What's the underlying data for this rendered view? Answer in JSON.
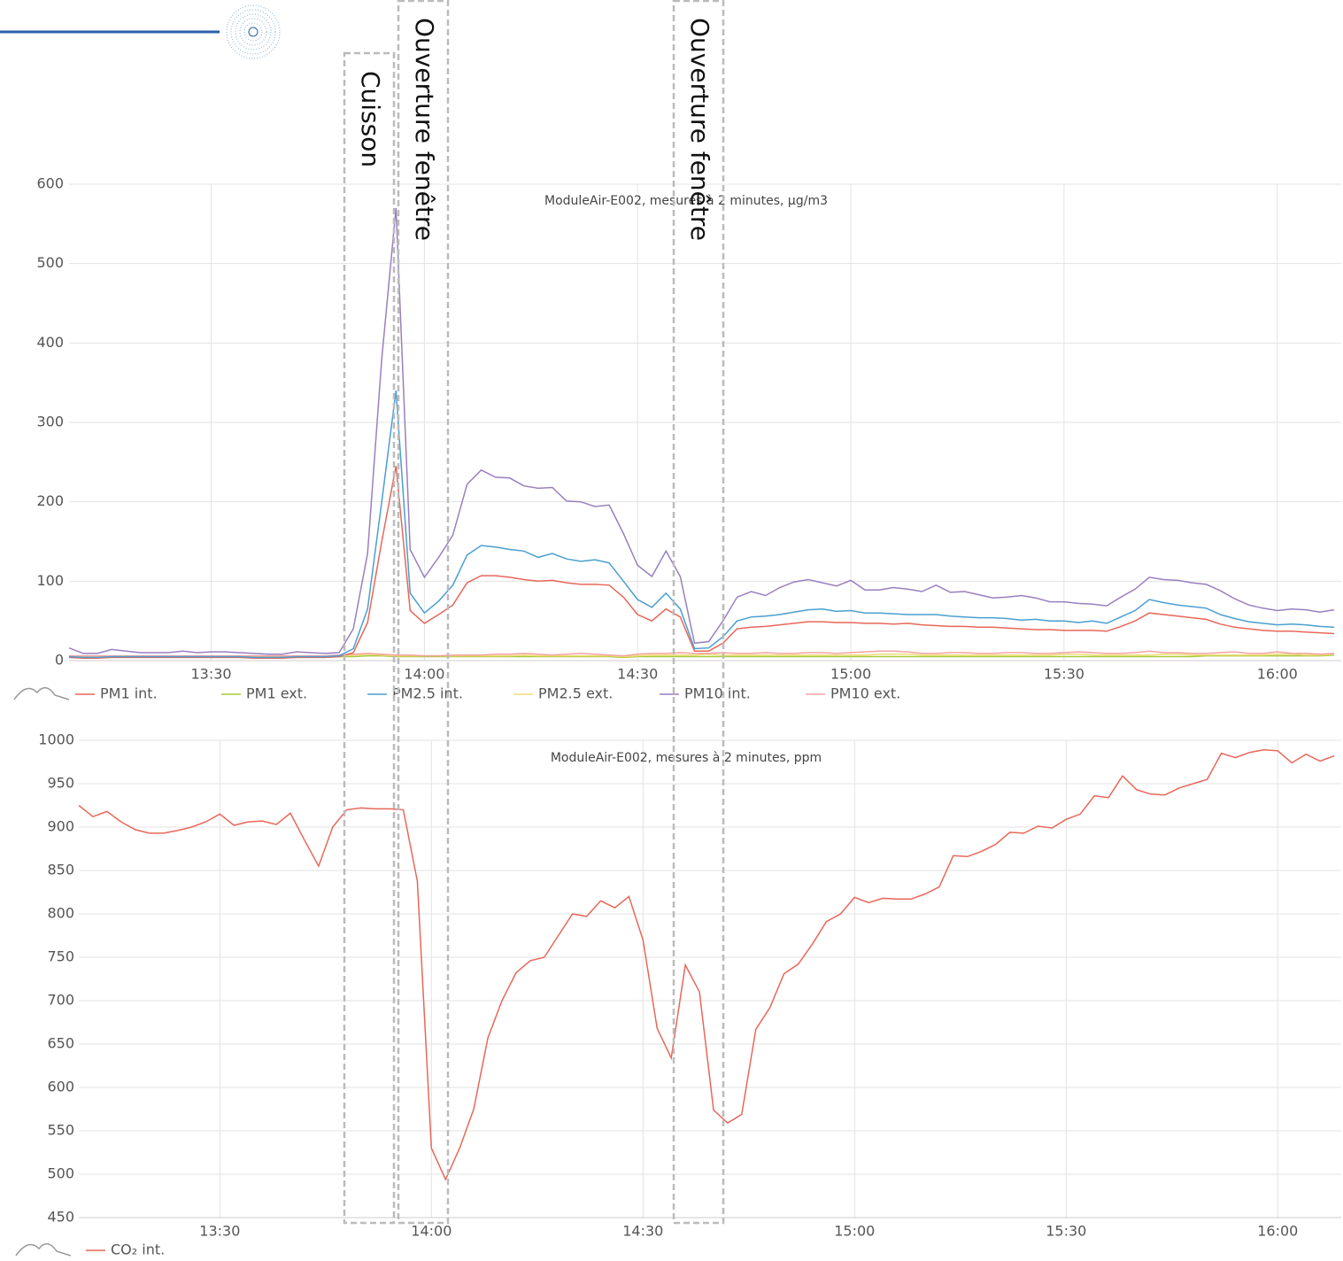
{
  "chart_data": [
    {
      "type": "line",
      "title": "ModuleAir-E002, mesures à 2 minutes, µg/m3",
      "x": [
        "13:10",
        "13:12",
        "13:14",
        "13:16",
        "13:18",
        "13:20",
        "13:22",
        "13:24",
        "13:26",
        "13:28",
        "13:30",
        "13:32",
        "13:34",
        "13:36",
        "13:38",
        "13:40",
        "13:42",
        "13:44",
        "13:46",
        "13:48",
        "13:50",
        "13:52",
        "13:54",
        "13:56",
        "13:58",
        "14:00",
        "14:02",
        "14:04",
        "14:06",
        "14:08",
        "14:10",
        "14:12",
        "14:14",
        "14:16",
        "14:18",
        "14:20",
        "14:22",
        "14:24",
        "14:26",
        "14:28",
        "14:30",
        "14:32",
        "14:34",
        "14:36",
        "14:38",
        "14:40",
        "14:42",
        "14:44",
        "14:46",
        "14:48",
        "14:50",
        "14:52",
        "14:54",
        "14:56",
        "14:58",
        "15:00",
        "15:02",
        "15:04",
        "15:06",
        "15:08",
        "15:10",
        "15:12",
        "15:14",
        "15:16",
        "15:18",
        "15:20",
        "15:22",
        "15:24",
        "15:26",
        "15:28",
        "15:30",
        "15:32",
        "15:34",
        "15:36",
        "15:38",
        "15:40",
        "15:42",
        "15:44",
        "15:46",
        "15:48",
        "15:50",
        "15:52",
        "15:54",
        "15:56",
        "15:58",
        "16:00",
        "16:02",
        "16:04",
        "16:06",
        "16:08"
      ],
      "xlim": [
        "13:10",
        "16:09"
      ],
      "xticks": [
        "13:30",
        "14:00",
        "14:30",
        "15:00",
        "15:30",
        "16:00"
      ],
      "ylim": [
        0,
        600
      ],
      "yticks": [
        0,
        100,
        200,
        300,
        400,
        500,
        600
      ],
      "grid": true,
      "series": [
        {
          "name": "PM1 ext.",
          "color": "#a8c83a",
          "values": [
            4,
            4,
            4,
            4,
            4,
            4,
            4,
            4,
            4,
            4,
            4,
            4,
            4,
            4,
            4,
            4,
            4,
            4,
            4,
            5,
            5,
            6,
            6,
            5,
            5,
            5,
            5,
            5,
            5,
            5,
            5,
            5,
            5,
            5,
            5,
            5,
            5,
            5,
            5,
            4,
            5,
            5,
            5,
            5,
            5,
            5,
            5,
            5,
            5,
            5,
            5,
            5,
            5,
            5,
            5,
            5,
            5,
            5,
            5,
            5,
            5,
            5,
            5,
            5,
            5,
            5,
            5,
            5,
            5,
            5,
            5,
            5,
            5,
            5,
            5,
            5,
            5,
            5,
            5,
            5,
            6,
            6,
            6,
            6,
            6,
            6,
            6,
            6,
            6,
            7
          ]
        },
        {
          "name": "PM2.5 ext.",
          "color": "#f0dc78",
          "values": [
            5,
            5,
            5,
            5,
            5,
            5,
            5,
            5,
            5,
            5,
            5,
            5,
            5,
            5,
            5,
            5,
            5,
            5,
            5,
            6,
            7,
            8,
            7,
            6,
            6,
            6,
            6,
            6,
            6,
            6,
            6,
            6,
            7,
            6,
            6,
            6,
            6,
            6,
            6,
            5,
            6,
            7,
            7,
            7,
            7,
            8,
            7,
            7,
            7,
            7,
            7,
            7,
            7,
            7,
            7,
            7,
            7,
            8,
            8,
            8,
            7,
            7,
            7,
            7,
            7,
            7,
            7,
            7,
            7,
            7,
            8,
            8,
            7,
            7,
            7,
            7,
            7,
            8,
            8,
            7,
            7,
            7,
            7,
            7,
            7,
            8,
            8,
            7,
            7,
            8
          ]
        },
        {
          "name": "PM10 ext.",
          "color": "#f2a3a0",
          "values": [
            6,
            6,
            6,
            6,
            6,
            6,
            6,
            6,
            6,
            6,
            6,
            6,
            6,
            6,
            6,
            6,
            6,
            6,
            6,
            7,
            8,
            9,
            8,
            7,
            7,
            6,
            6,
            7,
            7,
            7,
            8,
            8,
            9,
            8,
            7,
            8,
            9,
            8,
            7,
            6,
            8,
            9,
            9,
            10,
            9,
            9,
            10,
            9,
            9,
            10,
            9,
            9,
            10,
            10,
            9,
            10,
            11,
            12,
            12,
            11,
            9,
            9,
            10,
            10,
            9,
            9,
            10,
            10,
            9,
            9,
            10,
            11,
            10,
            9,
            9,
            10,
            12,
            10,
            10,
            9,
            9,
            10,
            11,
            9,
            9,
            11,
            9,
            9,
            8,
            9
          ]
        },
        {
          "name": "PM1 int.",
          "color": "#e8675a",
          "values": [
            4,
            3,
            3,
            4,
            4,
            4,
            4,
            4,
            4,
            4,
            4,
            4,
            4,
            3,
            3,
            3,
            4,
            4,
            4,
            5,
            10,
            48,
            150,
            245,
            63,
            47,
            58,
            70,
            98,
            107,
            107,
            105,
            102,
            100,
            101,
            98,
            96,
            96,
            95,
            80,
            58,
            50,
            65,
            55,
            12,
            12,
            22,
            40,
            42,
            43,
            45,
            47,
            49,
            49,
            48,
            48,
            47,
            47,
            46,
            47,
            45,
            44,
            43,
            43,
            42,
            42,
            41,
            40,
            39,
            39,
            38,
            38,
            38,
            37,
            43,
            50,
            60,
            58,
            56,
            54,
            52,
            46,
            42,
            40,
            38,
            37,
            37,
            36,
            35,
            34
          ]
        },
        {
          "name": "PM2.5 int.",
          "color": "#4a9fd0",
          "values": [
            5,
            4,
            4,
            5,
            5,
            5,
            5,
            5,
            5,
            5,
            5,
            5,
            5,
            4,
            4,
            4,
            5,
            5,
            5,
            6,
            15,
            65,
            200,
            340,
            85,
            60,
            75,
            95,
            133,
            145,
            143,
            140,
            138,
            130,
            135,
            128,
            125,
            127,
            123,
            100,
            77,
            67,
            85,
            65,
            15,
            16,
            30,
            50,
            55,
            56,
            58,
            61,
            64,
            65,
            62,
            63,
            60,
            60,
            59,
            58,
            58,
            58,
            56,
            55,
            54,
            54,
            53,
            51,
            52,
            50,
            50,
            48,
            50,
            47,
            55,
            63,
            77,
            73,
            70,
            68,
            66,
            58,
            53,
            49,
            47,
            45,
            46,
            45,
            43,
            42
          ]
        },
        {
          "name": "PM10 int.",
          "color": "#9a7fbf",
          "values": [
            16,
            9,
            9,
            14,
            12,
            10,
            10,
            10,
            12,
            10,
            11,
            11,
            10,
            9,
            8,
            8,
            11,
            10,
            9,
            10,
            40,
            135,
            380,
            570,
            140,
            105,
            130,
            158,
            222,
            240,
            231,
            230,
            220,
            217,
            218,
            201,
            200,
            194,
            196,
            160,
            120,
            106,
            138,
            106,
            22,
            24,
            50,
            80,
            87,
            82,
            92,
            99,
            102,
            98,
            94,
            101,
            89,
            89,
            92,
            90,
            87,
            95,
            86,
            87,
            83,
            79,
            80,
            82,
            79,
            74,
            74,
            72,
            71,
            69,
            80,
            90,
            105,
            102,
            101,
            98,
            96,
            88,
            78,
            70,
            66,
            63,
            65,
            64,
            61,
            64
          ]
        }
      ]
    },
    {
      "type": "line",
      "title": "ModuleAir-E002, mesures à 2 minutes, ppm",
      "x": [
        "13:10",
        "13:12",
        "13:14",
        "13:16",
        "13:18",
        "13:20",
        "13:22",
        "13:24",
        "13:26",
        "13:28",
        "13:30",
        "13:32",
        "13:34",
        "13:36",
        "13:38",
        "13:40",
        "13:42",
        "13:44",
        "13:46",
        "13:48",
        "13:50",
        "13:52",
        "13:54",
        "13:56",
        "13:58",
        "14:00",
        "14:02",
        "14:04",
        "14:06",
        "14:08",
        "14:10",
        "14:12",
        "14:14",
        "14:16",
        "14:18",
        "14:20",
        "14:22",
        "14:24",
        "14:26",
        "14:28",
        "14:30",
        "14:32",
        "14:34",
        "14:36",
        "14:38",
        "14:40",
        "14:42",
        "14:44",
        "14:46",
        "14:48",
        "14:50",
        "14:52",
        "14:54",
        "14:56",
        "14:58",
        "15:00",
        "15:02",
        "15:04",
        "15:06",
        "15:08",
        "15:10",
        "15:12",
        "15:14",
        "15:16",
        "15:18",
        "15:20",
        "15:22",
        "15:24",
        "15:26",
        "15:28",
        "15:30",
        "15:32",
        "15:34",
        "15:36",
        "15:38",
        "15:40",
        "15:42",
        "15:44",
        "15:46",
        "15:48",
        "15:50",
        "15:52",
        "15:54",
        "15:56",
        "15:58",
        "16:00",
        "16:02",
        "16:04",
        "16:06",
        "16:08"
      ],
      "xlim": [
        "13:10",
        "16:09"
      ],
      "xticks": [
        "13:30",
        "14:00",
        "14:30",
        "15:00",
        "15:30",
        "16:00"
      ],
      "ylim": [
        450,
        1000
      ],
      "yticks": [
        450,
        500,
        550,
        600,
        650,
        700,
        750,
        800,
        850,
        900,
        950,
        1000
      ],
      "grid": true,
      "series": [
        {
          "name": "CO₂ int.",
          "color": "#e8675a",
          "values": [
            925,
            912,
            918,
            906,
            897,
            893,
            893,
            896,
            900,
            906,
            915,
            902,
            906,
            907,
            903,
            916,
            885,
            855,
            900,
            920,
            922,
            921,
            921,
            920,
            838,
            530,
            494,
            530,
            575,
            657,
            700,
            732,
            746,
            750,
            775,
            800,
            797,
            815,
            807,
            820,
            770,
            668,
            634,
            741,
            710,
            574,
            559,
            569,
            667,
            692,
            731,
            742,
            765,
            791,
            800,
            819,
            813,
            818,
            817,
            817,
            823,
            831,
            867,
            866,
            872,
            880,
            894,
            893,
            901,
            899,
            909,
            915,
            936,
            934,
            959,
            943,
            938,
            937,
            945,
            950,
            955,
            985,
            980,
            986,
            989,
            988,
            974,
            984,
            976,
            982
          ]
        }
      ]
    }
  ],
  "annotations": [
    "Cuisson",
    "Ouverture fenêtre",
    "Ouverture fenêtre"
  ]
}
